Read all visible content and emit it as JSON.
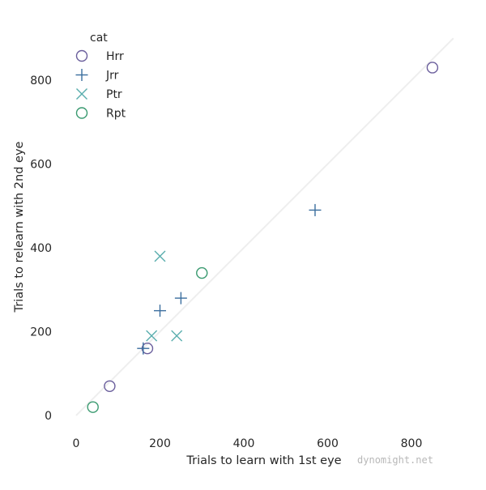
{
  "chart_data": {
    "type": "scatter",
    "xlabel": "Trials to learn with 1st eye",
    "ylabel": "Trials to relearn with 2nd eye",
    "xlim": [
      0,
      900
    ],
    "ylim": [
      0,
      900
    ],
    "x_ticks": [
      0,
      200,
      400,
      600,
      800
    ],
    "y_ticks": [
      0,
      200,
      400,
      600,
      800
    ],
    "grid": false,
    "reference_line": {
      "from": [
        0,
        0
      ],
      "to": [
        900,
        900
      ],
      "color": "#eeeeee"
    },
    "legend": {
      "title": "cat",
      "placement": "top-left"
    },
    "series": [
      {
        "name": "Hrr",
        "marker": "circle",
        "color": "#6a5e9c",
        "points": [
          [
            80,
            70
          ],
          [
            170,
            160
          ],
          [
            850,
            830
          ]
        ]
      },
      {
        "name": "Jrr",
        "marker": "plus",
        "color": "#3b6e9e",
        "points": [
          [
            160,
            160
          ],
          [
            200,
            250
          ],
          [
            250,
            280
          ],
          [
            570,
            490
          ]
        ]
      },
      {
        "name": "Ptr",
        "marker": "x",
        "color": "#5aaeae",
        "points": [
          [
            180,
            190
          ],
          [
            200,
            380
          ],
          [
            240,
            190
          ]
        ]
      },
      {
        "name": "Rpt",
        "marker": "circle",
        "color": "#3a9a70",
        "points": [
          [
            40,
            20
          ],
          [
            300,
            340
          ]
        ]
      }
    ]
  },
  "watermark": "dynomight.net"
}
